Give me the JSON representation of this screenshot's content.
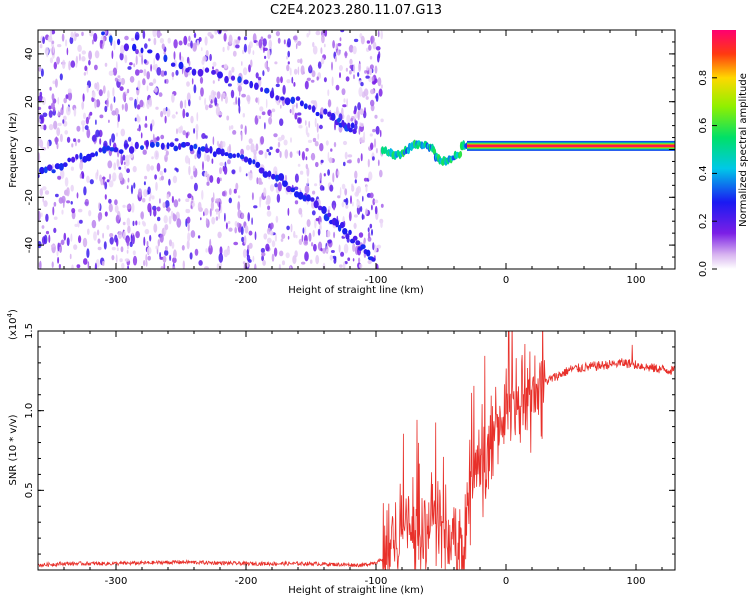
{
  "figure": {
    "title": "C2E4.2023.280.11.07.G13"
  },
  "colors": {
    "snr_line": "#e8302a",
    "axis": "#000000",
    "background": "#ffffff"
  },
  "chart_data": [
    {
      "type": "heatmap",
      "title": "C2E4.2023.280.11.07.G13",
      "xlabel": "Height of straight line (km)",
      "ylabel": "Frequency (Hz)",
      "xlim": [
        -360,
        130
      ],
      "ylim": [
        -50,
        50
      ],
      "x_ticks": [
        -300,
        -200,
        -100,
        0,
        100
      ],
      "y_ticks": [
        -40,
        -20,
        0,
        20,
        40
      ],
      "colorbar": {
        "label": "Normalized spectral amplitude",
        "range": [
          0.0,
          1.0
        ],
        "ticks": [
          0.0,
          0.2,
          0.4,
          0.6,
          0.8
        ],
        "colormap": "white-purple-blue-cyan-green-yellow-red-magenta"
      },
      "features": [
        {
          "x_range": [
            -360,
            -95
          ],
          "description": "scattered low-amplitude noise across all frequencies",
          "amplitude": 0.15
        },
        {
          "x_range": [
            -95,
            -30
          ],
          "freq_hz": 0,
          "description": "narrow signal band, wavy",
          "amplitude": 0.45
        },
        {
          "x_range": [
            -30,
            130
          ],
          "freq_hz": 1.5,
          "description": "strong narrow carrier line",
          "amplitude": 0.95
        }
      ],
      "traces": [
        {
          "description": "upper arc in noise",
          "points": [
            [
              -310,
              48
            ],
            [
              -250,
              35
            ],
            [
              -200,
              27
            ],
            [
              -160,
              20
            ],
            [
              -130,
              12
            ],
            [
              -115,
              8
            ]
          ]
        },
        {
          "description": "lower arc in noise",
          "points": [
            [
              -360,
              -10
            ],
            [
              -330,
              -4
            ],
            [
              -300,
              0
            ],
            [
              -260,
              2
            ],
            [
              -230,
              0
            ],
            [
              -200,
              -4
            ],
            [
              -170,
              -14
            ],
            [
              -140,
              -26
            ],
            [
              -120,
              -36
            ],
            [
              -100,
              -48
            ]
          ]
        }
      ]
    },
    {
      "type": "line",
      "xlabel": "Height of straight line (km)",
      "ylabel": "SNR (10 * v/v)",
      "y_multiplier_label": "(x10",
      "y_multiplier_exp": "4",
      "xlim": [
        -360,
        130
      ],
      "ylim": [
        0,
        1.5
      ],
      "x_ticks": [
        -300,
        -200,
        -100,
        0,
        100
      ],
      "y_ticks": [
        0.5,
        1.0,
        1.5
      ],
      "series": [
        {
          "color": "#e8302a",
          "x": [
            -360,
            -340,
            -300,
            -250,
            -200,
            -150,
            -110,
            -95,
            -85,
            -75,
            -65,
            -55,
            -45,
            -35,
            -25,
            -20,
            -15,
            -10,
            -5,
            0,
            10,
            20,
            30,
            40,
            50,
            60,
            70,
            80,
            90,
            100,
            110,
            120,
            130
          ],
          "values": [
            0.03,
            0.04,
            0.04,
            0.05,
            0.04,
            0.04,
            0.03,
            0.06,
            0.25,
            0.3,
            0.22,
            0.35,
            0.2,
            0.12,
            0.55,
            0.75,
            0.65,
            0.85,
            0.9,
            1.0,
            1.05,
            1.1,
            1.18,
            1.22,
            1.26,
            1.27,
            1.28,
            1.29,
            1.3,
            1.29,
            1.27,
            1.26,
            1.25
          ]
        }
      ]
    }
  ]
}
